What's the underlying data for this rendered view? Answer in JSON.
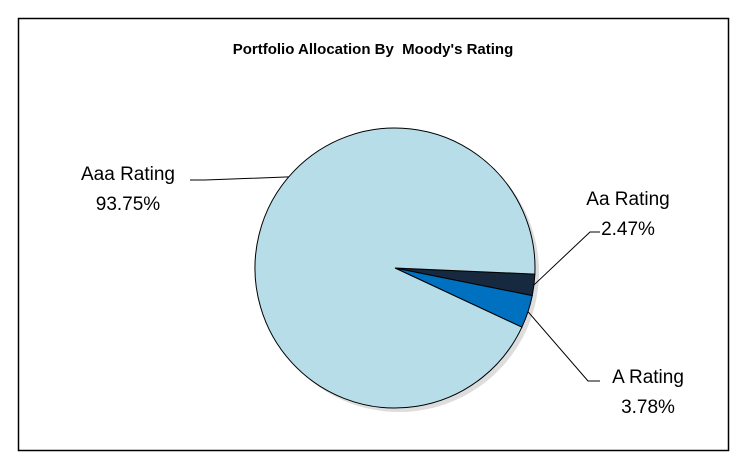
{
  "chart_data": {
    "type": "pie",
    "title": "Portfolio Allocation By  Moody's Rating",
    "categories": [
      "Aa Rating",
      "A Rating",
      "Aaa Rating"
    ],
    "values": [
      2.47,
      3.78,
      93.75
    ],
    "value_labels": [
      "2.47%",
      "3.78%",
      "93.75%"
    ],
    "colors": [
      "#17293f",
      "#0070c0",
      "#b7dde8"
    ]
  }
}
